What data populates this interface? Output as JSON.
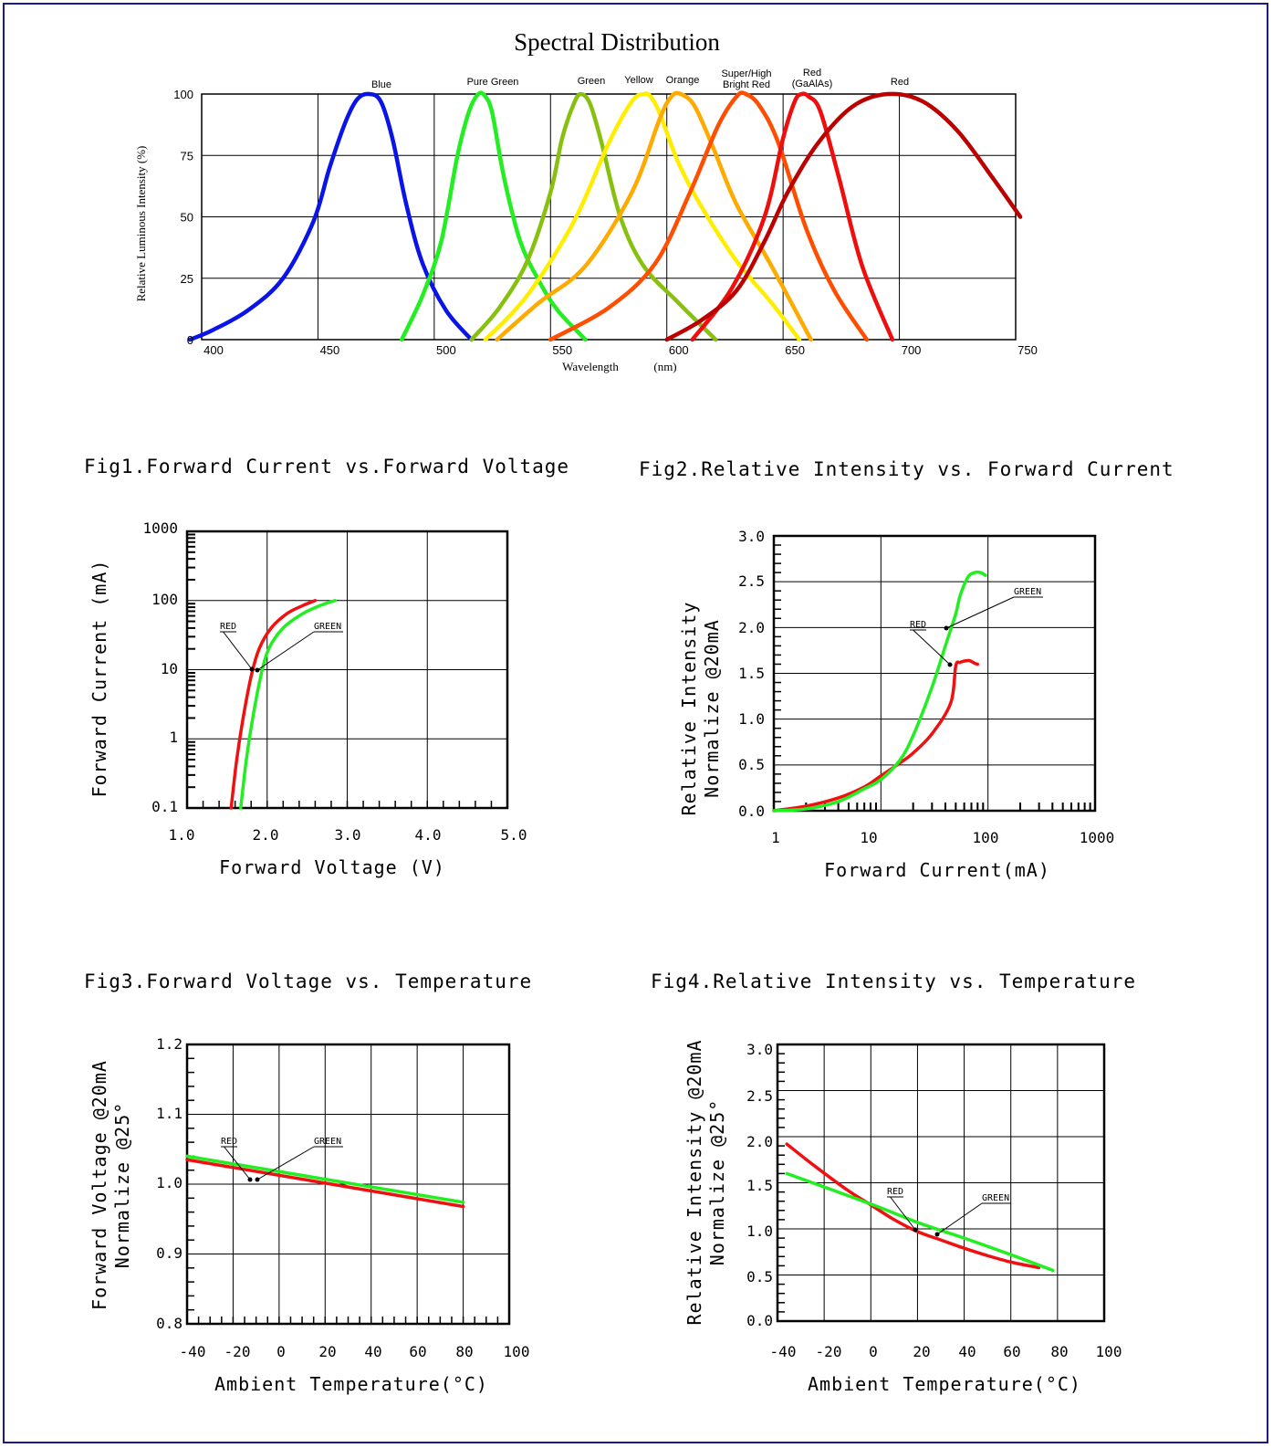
{
  "chart_data": [
    {
      "type": "line",
      "title": "Spectral Distribution",
      "xlabel": "Wavelength",
      "xlabel_unit": "(nm)",
      "ylabel": "Relative Luminous Intensity (%)",
      "xlim": [
        400,
        750
      ],
      "ylim": [
        0,
        100
      ],
      "x_ticks": [
        "400",
        "450",
        "500",
        "550",
        "600",
        "650",
        "700",
        "750"
      ],
      "y_ticks": [
        "0",
        "25",
        "50",
        "75",
        "100"
      ],
      "grid": true,
      "series": [
        {
          "name": "Blue",
          "color": "#0a14e6",
          "x": [
            395,
            405,
            420,
            435,
            448,
            455,
            462,
            467,
            472,
            477,
            482,
            488,
            495,
            505,
            516
          ],
          "y": [
            0,
            4,
            12,
            25,
            48,
            70,
            89,
            98,
            100,
            97,
            82,
            55,
            31,
            12,
            0
          ]
        },
        {
          "name": "Pure Green",
          "color": "#22ee22",
          "x": [
            486,
            495,
            503,
            510,
            515,
            519,
            522,
            525,
            530,
            537,
            545,
            553,
            565
          ],
          "y": [
            0,
            18,
            40,
            75,
            93,
            100,
            99,
            92,
            66,
            40,
            24,
            12,
            0
          ]
        },
        {
          "name": "Green",
          "color": "#88c010",
          "x": [
            516,
            528,
            540,
            550,
            555,
            560,
            563,
            567,
            572,
            580,
            590,
            605,
            621
          ],
          "y": [
            0,
            13,
            32,
            60,
            82,
            96,
            100,
            96,
            80,
            50,
            30,
            15,
            0
          ]
        },
        {
          "name": "Yellow",
          "color": "#ffee00",
          "x": [
            522,
            540,
            560,
            575,
            585,
            590,
            593,
            597,
            605,
            615,
            630,
            645,
            657
          ],
          "y": [
            0,
            18,
            48,
            80,
            97,
            100,
            99,
            92,
            72,
            54,
            32,
            15,
            0
          ]
        },
        {
          "name": "Orange",
          "color": "#ffaa00",
          "x": [
            527,
            545,
            565,
            585,
            597,
            602,
            606,
            612,
            620,
            630,
            645,
            662
          ],
          "y": [
            0,
            15,
            30,
            60,
            90,
            99,
            100,
            95,
            78,
            55,
            30,
            0
          ]
        },
        {
          "name": "Super/High Bright Red",
          "color": "#ff4e00",
          "x": [
            550,
            575,
            595,
            610,
            622,
            630,
            634,
            640,
            648,
            660,
            672,
            686
          ],
          "y": [
            0,
            13,
            31,
            60,
            87,
            99,
            100,
            95,
            80,
            45,
            20,
            0
          ]
        },
        {
          "name": "Red (GaAlAs)",
          "color": "#ee0e0e",
          "x": [
            611,
            628,
            642,
            650,
            655,
            658,
            661,
            666,
            674,
            684,
            697
          ],
          "y": [
            0,
            21,
            50,
            82,
            97,
            100,
            99,
            93,
            66,
            30,
            0
          ]
        },
        {
          "name": "Red",
          "color": "#bb0000",
          "x": [
            600,
            615,
            630,
            642,
            652,
            665,
            680,
            695,
            710,
            725,
            740,
            752
          ],
          "y": [
            0,
            8,
            20,
            40,
            60,
            80,
            95,
            100,
            97,
            85,
            66,
            50
          ]
        }
      ]
    },
    {
      "type": "line",
      "title": "Fig1.Forward Current vs.Forward Voltage",
      "xlabel": "Forward Voltage (V)",
      "ylabel": "Forward Current (mA)",
      "x_scale": "linear",
      "y_scale": "log",
      "xlim": [
        1.0,
        5.0
      ],
      "ylim": [
        0.1,
        1000
      ],
      "x_ticks": [
        "1.0",
        "2.0",
        "3.0",
        "4.0",
        "5.0"
      ],
      "y_ticks": [
        "0.1",
        "1",
        "10",
        "100",
        "1000"
      ],
      "grid": true,
      "series": [
        {
          "name": "RED",
          "color": "#ee1111",
          "x": [
            1.55,
            1.62,
            1.7,
            1.8,
            1.9,
            2.05,
            2.25,
            2.45,
            2.6
          ],
          "y": [
            0.1,
            0.5,
            2,
            8,
            20,
            40,
            65,
            85,
            100
          ]
        },
        {
          "name": "GREEN",
          "color": "#22ee22",
          "x": [
            1.67,
            1.74,
            1.82,
            1.92,
            2.02,
            2.2,
            2.45,
            2.7,
            2.85
          ],
          "y": [
            0.1,
            0.5,
            2,
            8,
            20,
            40,
            65,
            88,
            100
          ]
        }
      ]
    },
    {
      "type": "line",
      "title": "Fig2.Relative Intensity vs. Forward Current",
      "xlabel": "Forward Current(mA)",
      "ylabel": "Relative Intensity",
      "ylabel2": "Normalize @20mA",
      "x_scale": "log",
      "y_scale": "linear",
      "xlim": [
        1,
        1000
      ],
      "ylim": [
        0,
        3.0
      ],
      "x_ticks": [
        "1",
        "10",
        "100",
        "1000"
      ],
      "y_ticks": [
        "0.0",
        "0.5",
        "1.0",
        "1.5",
        "2.0",
        "2.5",
        "3.0"
      ],
      "grid": true,
      "series": [
        {
          "name": "RED",
          "color": "#ee1111",
          "x": [
            1,
            2,
            4,
            7,
            10,
            15,
            20,
            30,
            45,
            50,
            55,
            65,
            70,
            75,
            80
          ],
          "y": [
            0,
            0.05,
            0.14,
            0.26,
            0.38,
            0.52,
            0.63,
            0.84,
            1.18,
            1.58,
            1.62,
            1.64,
            1.63,
            1.61,
            1.6
          ]
        },
        {
          "name": "GREEN",
          "color": "#22ee22",
          "x": [
            1,
            2,
            4,
            7,
            10,
            15,
            20,
            30,
            40,
            50,
            55,
            65,
            75,
            85,
            95
          ],
          "y": [
            0,
            0.02,
            0.1,
            0.24,
            0.34,
            0.55,
            0.82,
            1.35,
            1.8,
            2.15,
            2.35,
            2.55,
            2.6,
            2.6,
            2.57
          ]
        }
      ]
    },
    {
      "type": "line",
      "title": "Fig3.Forward Voltage vs. Temperature",
      "xlabel": "Ambient Temperature(°C)",
      "ylabel": "Forward Voltage @20mA",
      "ylabel2": "Normalize @25°",
      "xlim": [
        -40,
        100
      ],
      "ylim": [
        0.8,
        1.2
      ],
      "x_ticks": [
        "-40",
        "-20",
        "0",
        "20",
        "40",
        "60",
        "80",
        "100"
      ],
      "y_ticks": [
        "0.8",
        "0.9",
        "1.0",
        "1.1",
        "1.2"
      ],
      "grid": true,
      "series": [
        {
          "name": "RED",
          "color": "#ee1111",
          "x": [
            -40,
            80
          ],
          "y": [
            1.035,
            0.968
          ]
        },
        {
          "name": "GREEN",
          "color": "#22ee22",
          "x": [
            -40,
            80
          ],
          "y": [
            1.04,
            0.974
          ]
        }
      ]
    },
    {
      "type": "line",
      "title": "Fig4.Relative Intensity vs. Temperature",
      "xlabel": "Ambient Temperature(°C)",
      "ylabel": "Relative Intensity @20mA",
      "ylabel2": "Normalize @25°",
      "xlim": [
        -40,
        100
      ],
      "ylim": [
        0,
        3.0
      ],
      "x_ticks": [
        "-40",
        "-20",
        "0",
        "20",
        "40",
        "60",
        "80",
        "100"
      ],
      "y_ticks": [
        "0.0",
        "0.5",
        "1.0",
        "1.5",
        "2.0",
        "2.5",
        "3.0"
      ],
      "grid": true,
      "series": [
        {
          "name": "RED",
          "color": "#ee1111",
          "x": [
            -36,
            -25,
            -10,
            0,
            10,
            20,
            30,
            40,
            50,
            60,
            72
          ],
          "y": [
            1.92,
            1.7,
            1.42,
            1.26,
            1.1,
            0.97,
            0.88,
            0.79,
            0.71,
            0.64,
            0.58
          ]
        },
        {
          "name": "GREEN",
          "color": "#22ee22",
          "x": [
            -36,
            0,
            20,
            40,
            60,
            78
          ],
          "y": [
            1.6,
            1.27,
            1.07,
            0.9,
            0.72,
            0.55
          ]
        }
      ]
    }
  ]
}
